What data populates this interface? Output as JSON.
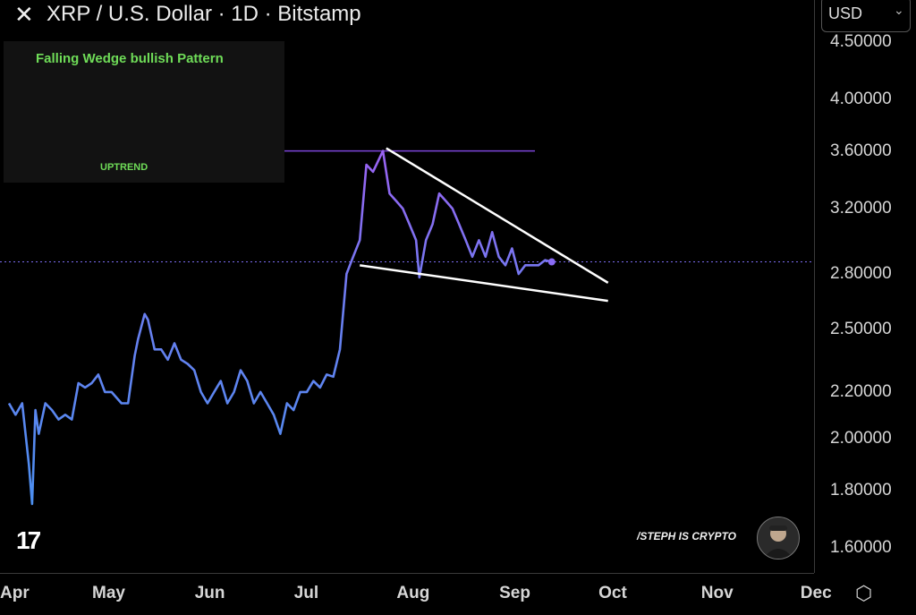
{
  "header": {
    "close_glyph": "✕",
    "title": "XRP / U.S. Dollar · 1D · Bitstamp",
    "currency": "USD",
    "chevron_glyph": "⌄"
  },
  "inset": {
    "title": "Falling Wedge bullish Pattern",
    "uptrend": "UPTREND"
  },
  "branding": {
    "logo": "17",
    "watermark": "/STEPH IS CRYPTO",
    "settings_glyph": "⬡"
  },
  "chart_data": {
    "type": "line",
    "log_scale": true,
    "grid": false,
    "title": "XRP / U.S. Dollar · 1D · Bitstamp",
    "x_ticks": [
      "Apr",
      "May",
      "Jun",
      "Jul",
      "Aug",
      "Sep",
      "Oct",
      "Nov",
      "Dec"
    ],
    "y_ticks": [
      "4.50000",
      "4.00000",
      "3.60000",
      "3.20000",
      "2.80000",
      "2.50000",
      "2.20000",
      "2.00000",
      "1.80000",
      "1.60000"
    ],
    "y_tick_values": [
      4.5,
      4.0,
      3.6,
      3.2,
      2.8,
      2.5,
      2.2,
      2.0,
      1.8,
      1.6
    ],
    "last_price": 2.87,
    "horizontal_level": 3.6,
    "series": [
      {
        "points": [
          [
            "04-01",
            2.15
          ],
          [
            "04-03",
            2.1
          ],
          [
            "04-05",
            2.15
          ],
          [
            "04-07",
            1.9
          ],
          [
            "04-08",
            1.75
          ],
          [
            "04-09",
            2.12
          ],
          [
            "04-10",
            2.02
          ],
          [
            "04-12",
            2.15
          ],
          [
            "04-14",
            2.12
          ],
          [
            "04-16",
            2.08
          ],
          [
            "04-18",
            2.1
          ],
          [
            "04-20",
            2.08
          ],
          [
            "04-22",
            2.24
          ],
          [
            "04-24",
            2.22
          ],
          [
            "04-26",
            2.24
          ],
          [
            "04-28",
            2.28
          ],
          [
            "04-30",
            2.2
          ],
          [
            "05-02",
            2.2
          ],
          [
            "05-05",
            2.15
          ],
          [
            "05-07",
            2.15
          ],
          [
            "05-09",
            2.37
          ],
          [
            "05-10",
            2.45
          ],
          [
            "05-12",
            2.58
          ],
          [
            "05-13",
            2.55
          ],
          [
            "05-15",
            2.4
          ],
          [
            "05-17",
            2.4
          ],
          [
            "05-19",
            2.35
          ],
          [
            "05-21",
            2.43
          ],
          [
            "05-23",
            2.35
          ],
          [
            "05-25",
            2.33
          ],
          [
            "05-27",
            2.3
          ],
          [
            "05-29",
            2.2
          ],
          [
            "05-31",
            2.15
          ],
          [
            "06-02",
            2.2
          ],
          [
            "06-04",
            2.25
          ],
          [
            "06-06",
            2.15
          ],
          [
            "06-08",
            2.2
          ],
          [
            "06-10",
            2.3
          ],
          [
            "06-12",
            2.25
          ],
          [
            "06-14",
            2.15
          ],
          [
            "06-16",
            2.2
          ],
          [
            "06-18",
            2.15
          ],
          [
            "06-20",
            2.1
          ],
          [
            "06-22",
            2.02
          ],
          [
            "06-24",
            2.15
          ],
          [
            "06-26",
            2.12
          ],
          [
            "06-28",
            2.2
          ],
          [
            "06-30",
            2.2
          ],
          [
            "07-02",
            2.25
          ],
          [
            "07-04",
            2.22
          ],
          [
            "07-06",
            2.28
          ],
          [
            "07-08",
            2.27
          ],
          [
            "07-10",
            2.4
          ],
          [
            "07-12",
            2.8
          ],
          [
            "07-14",
            2.9
          ],
          [
            "07-16",
            3.0
          ],
          [
            "07-18",
            3.5
          ],
          [
            "07-20",
            3.45
          ],
          [
            "07-22",
            3.55
          ],
          [
            "07-23",
            3.6
          ],
          [
            "07-25",
            3.3
          ],
          [
            "07-27",
            3.25
          ],
          [
            "07-29",
            3.2
          ],
          [
            "07-31",
            3.1
          ],
          [
            "08-02",
            3.0
          ],
          [
            "08-03",
            2.78
          ],
          [
            "08-05",
            3.0
          ],
          [
            "08-07",
            3.1
          ],
          [
            "08-09",
            3.3
          ],
          [
            "08-11",
            3.25
          ],
          [
            "08-13",
            3.2
          ],
          [
            "08-15",
            3.1
          ],
          [
            "08-17",
            3.0
          ],
          [
            "08-19",
            2.9
          ],
          [
            "08-21",
            3.0
          ],
          [
            "08-23",
            2.9
          ],
          [
            "08-25",
            3.05
          ],
          [
            "08-27",
            2.9
          ],
          [
            "08-29",
            2.85
          ],
          [
            "08-31",
            2.95
          ],
          [
            "09-02",
            2.8
          ],
          [
            "09-04",
            2.85
          ],
          [
            "09-06",
            2.85
          ],
          [
            "09-08",
            2.85
          ],
          [
            "09-10",
            2.88
          ],
          [
            "09-12",
            2.87
          ]
        ]
      }
    ],
    "trendlines": [
      {
        "from": [
          "07-24",
          3.62
        ],
        "to": [
          "09-29",
          2.75
        ]
      },
      {
        "from": [
          "07-16",
          2.85
        ],
        "to": [
          "09-29",
          2.65
        ]
      }
    ]
  }
}
